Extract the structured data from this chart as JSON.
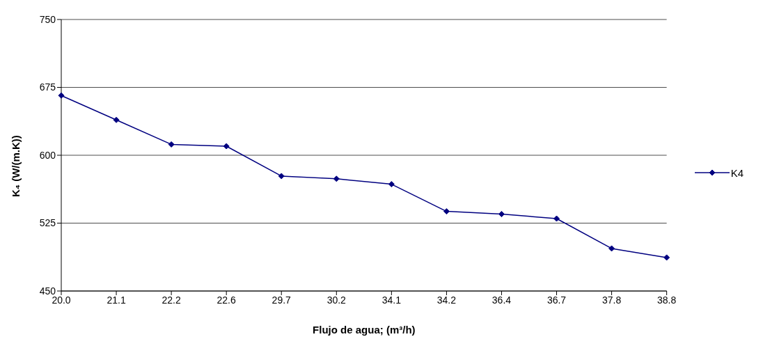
{
  "chart_data": {
    "type": "line",
    "xlabel": "Flujo de agua; (m³/h)",
    "ylabel": "K₄ (W/(m.K))",
    "categories": [
      "20.0",
      "21.1",
      "22.2",
      "22.6",
      "29.7",
      "30.2",
      "34.1",
      "34.2",
      "36.4",
      "36.7",
      "37.8",
      "38.8"
    ],
    "series": [
      {
        "name": "K4",
        "color": "#000080",
        "values": [
          666,
          639,
          612,
          610,
          577,
          574,
          568,
          538,
          535,
          530,
          497,
          487
        ]
      }
    ],
    "ylim": [
      450,
      750
    ],
    "yticks": [
      450,
      525,
      600,
      675,
      750
    ],
    "grid": "y",
    "legend": "right",
    "marker": "diamond",
    "line_style": "solid"
  }
}
